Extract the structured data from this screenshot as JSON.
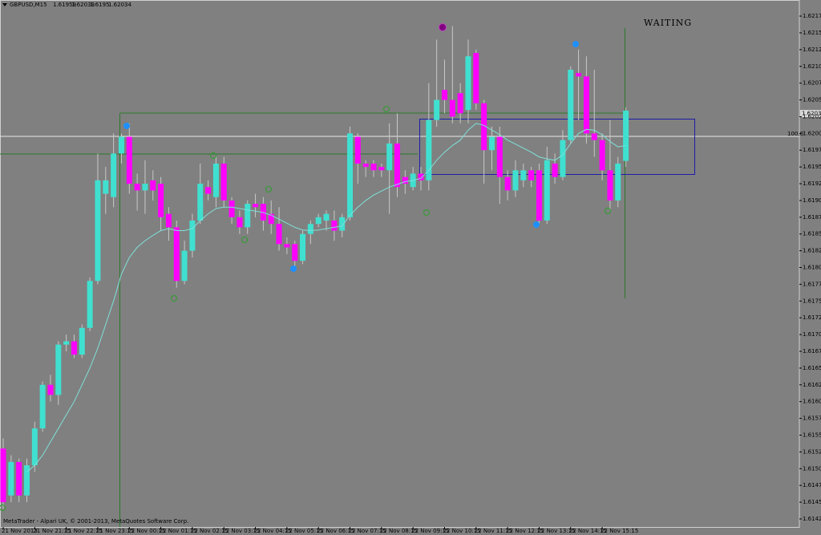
{
  "chart_data": {
    "type": "candlestick",
    "symbol": "GBPUSD,M15",
    "status": "WAITING",
    "level_label": "100.0",
    "copyright": "MetaTrader - Alpari UK, © 2001-2013, MetaQuotes Software Corp.",
    "bull_color": "#40e0d0",
    "bear_color": "#ff00ff",
    "ma_color": "#7fe0d8",
    "categories": [
      "21 Nov 2013",
      null,
      null,
      null,
      "21 Nov 21:15",
      null,
      null,
      null,
      "21 Nov 22:15",
      null,
      null,
      null,
      "21 Nov 23:15",
      null,
      null,
      null,
      "22 Nov 00:15",
      null,
      null,
      null,
      "22 Nov 01:15",
      null,
      null,
      null,
      "22 Nov 02:15",
      null,
      null,
      null,
      "22 Nov 03:15",
      null,
      null,
      null,
      "22 Nov 04:15",
      null,
      null,
      null,
      "22 Nov 05:15",
      null,
      null,
      null,
      "22 Nov 06:15",
      null,
      null,
      null,
      "22 Nov 07:15",
      null,
      null,
      null,
      "22 Nov 08:15",
      null,
      null,
      null,
      "22 Nov 09:15",
      null,
      null,
      null,
      "22 Nov 10:15",
      null,
      null,
      null,
      "22 Nov 11:15",
      null,
      null,
      null,
      "22 Nov 12:15",
      null,
      null,
      null,
      "22 Nov 13:15",
      null,
      null,
      null,
      "22 Nov 14:15",
      null,
      null,
      null,
      "22 Nov 15:15",
      null,
      null,
      null
    ],
    "open": [
      1.6153,
      1.6146,
      1.6151,
      1.6146,
      1.61505,
      1.6156,
      1.61625,
      1.6161,
      1.61685,
      1.6169,
      1.6167,
      1.6171,
      1.6178,
      1.6191,
      1.61905,
      1.6197,
      1.61995,
      1.61925,
      1.61915,
      1.6193,
      1.61925,
      1.6188,
      1.6186,
      1.6178,
      1.61825,
      1.6187,
      1.6192,
      1.61905,
      1.61955,
      1.619,
      1.61875,
      1.6186,
      1.61895,
      1.61895,
      1.6188,
      1.61865,
      1.61835,
      1.61835,
      1.6181,
      1.6185,
      1.61865,
      1.6187,
      1.6187,
      1.61855,
      1.61875,
      1.61995,
      1.61955,
      1.61955,
      1.6195,
      1.61945,
      1.61985,
      1.61935,
      1.6192,
      1.6194,
      1.6193,
      1.6202,
      1.62065,
      1.6205,
      1.6206,
      1.62035,
      1.6212,
      1.62045,
      1.61975,
      1.61995,
      1.61935,
      1.61915,
      1.6193,
      1.61945,
      1.61945,
      1.6187,
      1.61955,
      1.61935,
      1.6199,
      1.6209,
      1.62085,
      1.62,
      1.6199,
      1.61945,
      1.619,
      1.61959
    ],
    "high": [
      1.61545,
      1.6152,
      1.61515,
      1.61515,
      1.6157,
      1.6163,
      1.6164,
      1.6169,
      1.617,
      1.617,
      1.61715,
      1.61785,
      1.6197,
      1.6195,
      1.62,
      1.62,
      1.62015,
      1.6194,
      1.6196,
      1.61945,
      1.61935,
      1.6189,
      1.6187,
      1.6184,
      1.6188,
      1.61955,
      1.6193,
      1.61965,
      1.61965,
      1.61905,
      1.61885,
      1.619,
      1.6191,
      1.61905,
      1.619,
      1.6189,
      1.61845,
      1.6184,
      1.61855,
      1.6187,
      1.6188,
      1.61885,
      1.61885,
      1.6188,
      1.6201,
      1.62,
      1.6196,
      1.6196,
      1.61955,
      1.62015,
      1.6203,
      1.61945,
      1.6195,
      1.6195,
      1.62075,
      1.6214,
      1.6211,
      1.6216,
      1.62075,
      1.6214,
      1.62125,
      1.6205,
      1.6201,
      1.6201,
      1.61945,
      1.6196,
      1.61955,
      1.6195,
      1.61955,
      1.6198,
      1.6197,
      1.62005,
      1.621,
      1.62125,
      1.62115,
      1.62095,
      1.62,
      1.6202,
      1.61965,
      1.62039
    ],
    "low": [
      1.6144,
      1.6145,
      1.6145,
      1.6145,
      1.61495,
      1.61555,
      1.616,
      1.61595,
      1.61675,
      1.61665,
      1.61665,
      1.61705,
      1.61775,
      1.6188,
      1.6189,
      1.61955,
      1.6191,
      1.61885,
      1.6188,
      1.619,
      1.61855,
      1.6184,
      1.6177,
      1.61775,
      1.61815,
      1.61865,
      1.619,
      1.6189,
      1.6189,
      1.61865,
      1.6185,
      1.6185,
      1.61875,
      1.61855,
      1.6185,
      1.61825,
      1.6182,
      1.618,
      1.61805,
      1.61835,
      1.6186,
      1.61855,
      1.6184,
      1.61845,
      1.6187,
      1.61925,
      1.61935,
      1.61935,
      1.61935,
      1.6188,
      1.61905,
      1.6191,
      1.61915,
      1.61915,
      1.61915,
      1.6201,
      1.6203,
      1.62015,
      1.62015,
      1.62015,
      1.62035,
      1.61925,
      1.61945,
      1.61895,
      1.619,
      1.61905,
      1.6192,
      1.6192,
      1.61865,
      1.61865,
      1.61925,
      1.6193,
      1.61985,
      1.6202,
      1.61985,
      1.61965,
      1.6193,
      1.61885,
      1.6189,
      1.6195
    ],
    "close": [
      1.6145,
      1.6151,
      1.6146,
      1.61505,
      1.6156,
      1.61625,
      1.6161,
      1.61685,
      1.6169,
      1.6167,
      1.6171,
      1.6178,
      1.6193,
      1.6193,
      1.6197,
      1.61995,
      1.61925,
      1.61915,
      1.61925,
      1.61915,
      1.61875,
      1.6186,
      1.6178,
      1.61825,
      1.6187,
      1.61925,
      1.6191,
      1.61955,
      1.619,
      1.61875,
      1.6186,
      1.61895,
      1.6189,
      1.6187,
      1.61865,
      1.61835,
      1.6183,
      1.6181,
      1.6185,
      1.61865,
      1.61875,
      1.6188,
      1.61855,
      1.61875,
      1.62,
      1.61955,
      1.6195,
      1.61945,
      1.61945,
      1.61985,
      1.6192,
      1.61925,
      1.6194,
      1.6193,
      1.6202,
      1.6205,
      1.6205,
      1.62025,
      1.6203,
      1.62115,
      1.62045,
      1.61975,
      1.61995,
      1.61935,
      1.61915,
      1.61945,
      1.61945,
      1.6193,
      1.6187,
      1.6196,
      1.61935,
      1.6199,
      1.62095,
      1.62085,
      1.62,
      1.6199,
      1.61945,
      1.619,
      1.61955,
      1.62034
    ],
    "ma": [
      null,
      null,
      null,
      1.61495,
      1.61505,
      1.6152,
      1.6154,
      1.6156,
      1.6158,
      1.616,
      1.61625,
      1.6165,
      1.6168,
      1.61715,
      1.6175,
      1.6179,
      1.61815,
      1.6183,
      1.6184,
      1.61848,
      1.61855,
      1.61858,
      1.61855,
      1.61855,
      1.61858,
      1.6187,
      1.6188,
      1.61888,
      1.6189,
      1.6189,
      1.61888,
      1.61886,
      1.61884,
      1.61882,
      1.61878,
      1.61872,
      1.61866,
      1.6186,
      1.61856,
      1.61855,
      1.61856,
      1.61858,
      1.6186,
      1.61862,
      1.61878,
      1.6189,
      1.619,
      1.61908,
      1.61914,
      1.6192,
      1.61924,
      1.61928,
      1.6193,
      1.61933,
      1.61945,
      1.6196,
      1.61972,
      1.61982,
      1.6199,
      1.62005,
      1.62015,
      1.62012,
      1.62005,
      1.61998,
      1.6199,
      1.61984,
      1.61978,
      1.61972,
      1.61965,
      1.61962,
      1.6196,
      1.61968,
      1.61985,
      1.62,
      1.62006,
      1.62005,
      1.61998,
      1.61988,
      1.6198,
      1.61982
    ],
    "ylim": [
      1.61413,
      1.62199
    ],
    "yticks": [
      1.62175,
      {
        "value": 1.6215,
        "label": "1.62150"
      },
      1.62125,
      {
        "value": 1.621,
        "label": "1.62100"
      },
      1.62075,
      {
        "value": 1.6205,
        "label": "1.62050"
      },
      1.62025,
      {
        "value": 1.62,
        "label": "1.62000"
      },
      1.61975,
      {
        "value": 1.6195,
        "label": "1.61950"
      },
      1.61925,
      {
        "value": 1.619,
        "label": "1.61900"
      },
      1.61875,
      {
        "value": 1.6185,
        "label": "1.61850"
      },
      1.61825,
      {
        "value": 1.618,
        "label": "1.61800"
      },
      1.61775,
      {
        "value": 1.6175,
        "label": "1.61750"
      },
      1.61725,
      {
        "value": 1.617,
        "label": "1.61700"
      },
      1.61675,
      {
        "value": 1.6165,
        "label": "1.61650"
      },
      1.61625,
      {
        "value": 1.616,
        "label": "1.61600"
      },
      1.61575,
      {
        "value": 1.6155,
        "label": "1.61550"
      },
      1.61525,
      {
        "value": 1.615,
        "label": "1.61500"
      },
      1.61475,
      {
        "value": 1.6145,
        "label": "1.61450"
      },
      1.61425
    ]
  }
}
